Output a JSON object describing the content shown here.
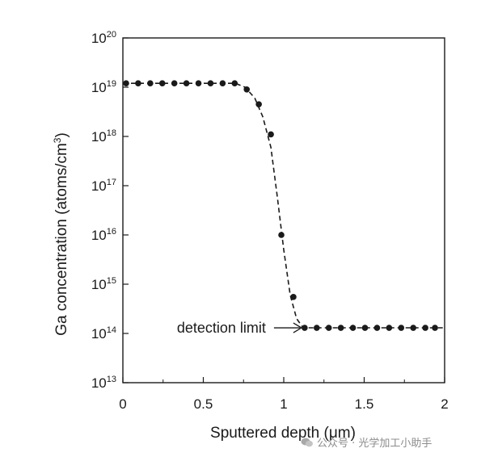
{
  "chart_data": {
    "type": "scatter",
    "xlabel": "Sputtered depth (μm)",
    "ylabel_prefix": "Ga concentration (atoms/cm",
    "ylabel_sup": "3",
    "ylabel_suffix": ")",
    "xlim": [
      0,
      2
    ],
    "ylim": [
      10000000000000.0,
      1e+20
    ],
    "yscale": "log",
    "x_ticks": [
      0,
      0.5,
      1,
      1.5,
      2
    ],
    "x_tick_labels": [
      "0",
      "0.5",
      "1",
      "1.5",
      "2"
    ],
    "y_tick_exponents": [
      13,
      14,
      15,
      16,
      17,
      18,
      19,
      20
    ],
    "y_tick_base": "10",
    "grid": false,
    "series": [
      {
        "style": "dots",
        "x": [
          0.02,
          0.095,
          0.17,
          0.245,
          0.32,
          0.395,
          0.47,
          0.545,
          0.62,
          0.695,
          0.77,
          0.845,
          0.92,
          0.985,
          1.06,
          1.13,
          1.205,
          1.28,
          1.355,
          1.43,
          1.505,
          1.58,
          1.655,
          1.73,
          1.805,
          1.88,
          1.94
        ],
        "y": [
          1.2e+19,
          1.2e+19,
          1.2e+19,
          1.2e+19,
          1.2e+19,
          1.2e+19,
          1.2e+19,
          1.2e+19,
          1.2e+19,
          1.2e+19,
          9e+18,
          4.5e+18,
          1.1e+18,
          1e+16,
          550000000000000.0,
          130000000000000.0,
          130000000000000.0,
          130000000000000.0,
          130000000000000.0,
          130000000000000.0,
          130000000000000.0,
          130000000000000.0,
          130000000000000.0,
          130000000000000.0,
          130000000000000.0,
          130000000000000.0,
          130000000000000.0
        ]
      },
      {
        "style": "dashed",
        "x": [
          0.0,
          0.7,
          0.76,
          0.82,
          0.87,
          0.92,
          0.96,
          1.0,
          1.04,
          1.08,
          1.12,
          1.2,
          2.0
        ],
        "y": [
          1.2e+19,
          1.2e+19,
          1e+19,
          6e+18,
          2.5e+18,
          6e+17,
          6e+16,
          5000000000000000.0,
          600000000000000.0,
          200000000000000.0,
          130000000000000.0,
          130000000000000.0,
          130000000000000.0
        ]
      }
    ],
    "annotations": [
      {
        "text": "detection limit",
        "x": 1.1,
        "y": 130000000000000.0,
        "arrow": true
      }
    ]
  },
  "watermark": {
    "text": "公众号 · 光学加工小助手"
  }
}
